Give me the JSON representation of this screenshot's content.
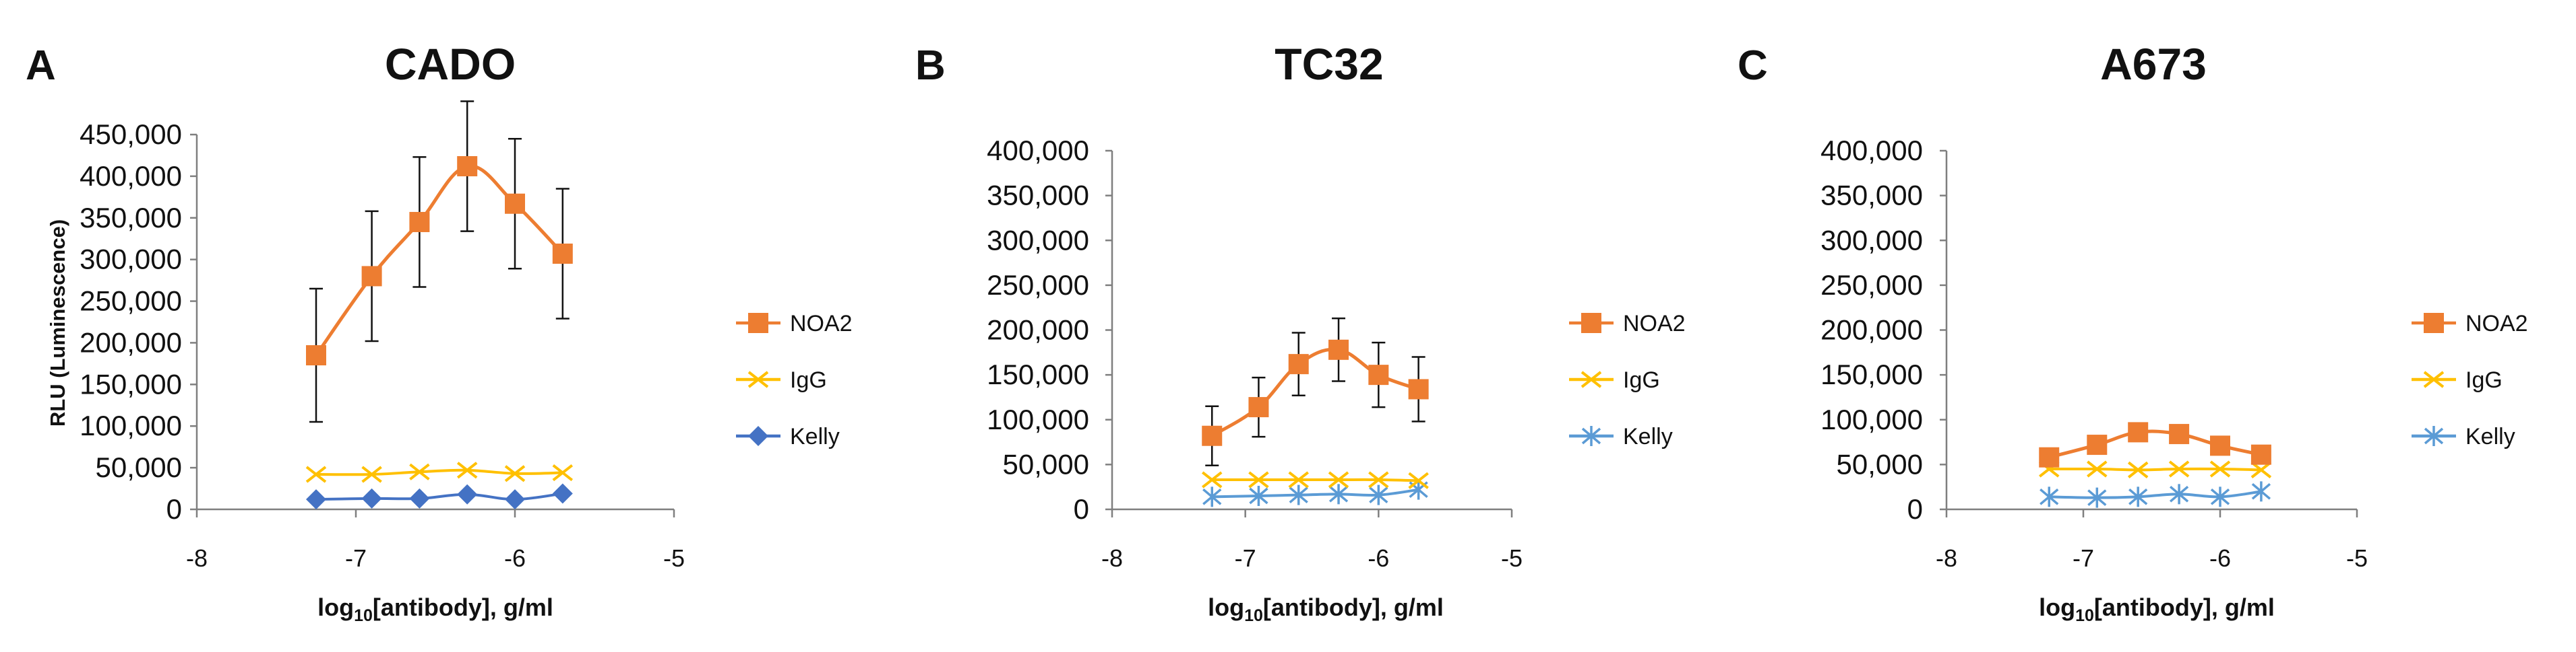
{
  "figure": {
    "x_label_prefix": "log",
    "x_label_sub": "10",
    "x_label_suffix": "[antibody], g/ml"
  },
  "colors": {
    "NOA2": "#ED7D31",
    "IgG": "#FFC000",
    "Kelly_A": "#4472C4",
    "Kelly_BC": "#5B9BD5",
    "axis": "#7F7F7F",
    "error_bar": "#111111"
  },
  "chart_data": [
    {
      "panel": "A",
      "type": "line",
      "title": "CADO",
      "xlabel": "log10[antibody], g/ml",
      "ylabel": "RLU (Luminescence)",
      "xlim": [
        -8,
        -5
      ],
      "ylim": [
        0,
        450000
      ],
      "xticks": [
        "-8",
        "-7",
        "-6",
        "-5"
      ],
      "yticks": [
        "0",
        "50,000",
        "100,000",
        "150,000",
        "200,000",
        "250,000",
        "300,000",
        "350,000",
        "400,000",
        "450,000"
      ],
      "x": [
        -7.25,
        -6.9,
        -6.6,
        -6.3,
        -6.0,
        -5.7
      ],
      "legend_position": "right",
      "series": [
        {
          "name": "NOA2",
          "marker": "square",
          "values": [
            185000,
            280000,
            345000,
            412000,
            367000,
            307000
          ],
          "errors": [
            80000,
            78000,
            78000,
            78000,
            78000,
            78000
          ]
        },
        {
          "name": "IgG",
          "marker": "x",
          "values": [
            42000,
            42000,
            45000,
            47000,
            43000,
            44000
          ]
        },
        {
          "name": "Kelly",
          "marker": "diamond",
          "values": [
            12000,
            13000,
            13000,
            18000,
            12000,
            19000
          ]
        }
      ]
    },
    {
      "panel": "B",
      "type": "line",
      "title": "TC32",
      "xlabel": "log10[antibody], g/ml",
      "ylabel": "",
      "xlim": [
        -8,
        -5
      ],
      "ylim": [
        0,
        400000
      ],
      "xticks": [
        "-8",
        "-7",
        "-6",
        "-5"
      ],
      "yticks": [
        "0",
        "50,000",
        "100,000",
        "150,000",
        "200,000",
        "250,000",
        "300,000",
        "350,000",
        "400,000"
      ],
      "x": [
        -7.25,
        -6.9,
        -6.6,
        -6.3,
        -6.0,
        -5.7
      ],
      "legend_position": "right",
      "series": [
        {
          "name": "NOA2",
          "marker": "square",
          "values": [
            82000,
            114000,
            162000,
            178000,
            150000,
            134000
          ],
          "errors": [
            33000,
            33000,
            35000,
            35000,
            36000,
            36000
          ]
        },
        {
          "name": "IgG",
          "marker": "x",
          "values": [
            33000,
            33000,
            33000,
            33000,
            33000,
            32000
          ]
        },
        {
          "name": "Kelly",
          "marker": "star",
          "values": [
            14000,
            15000,
            16000,
            17000,
            16000,
            22000
          ]
        }
      ]
    },
    {
      "panel": "C",
      "type": "line",
      "title": "A673",
      "xlabel": "log10[antibody], g/ml",
      "ylabel": "",
      "xlim": [
        -8,
        -5
      ],
      "ylim": [
        0,
        400000
      ],
      "xticks": [
        "-8",
        "-7",
        "-6",
        "-5"
      ],
      "yticks": [
        "0",
        "50,000",
        "100,000",
        "150,000",
        "200,000",
        "250,000",
        "300,000",
        "350,000",
        "400,000"
      ],
      "x": [
        -7.25,
        -6.9,
        -6.6,
        -6.3,
        -6.0,
        -5.7
      ],
      "legend_position": "right",
      "series": [
        {
          "name": "NOA2",
          "marker": "square",
          "values": [
            58000,
            72000,
            86000,
            84000,
            71000,
            61000
          ],
          "errors": [
            9000,
            9000,
            9000,
            9000,
            9000,
            9000
          ]
        },
        {
          "name": "IgG",
          "marker": "x",
          "values": [
            45000,
            45000,
            44000,
            45000,
            45000,
            44000
          ]
        },
        {
          "name": "Kelly",
          "marker": "star",
          "values": [
            14000,
            13000,
            14000,
            17000,
            14000,
            20000
          ]
        }
      ]
    }
  ]
}
